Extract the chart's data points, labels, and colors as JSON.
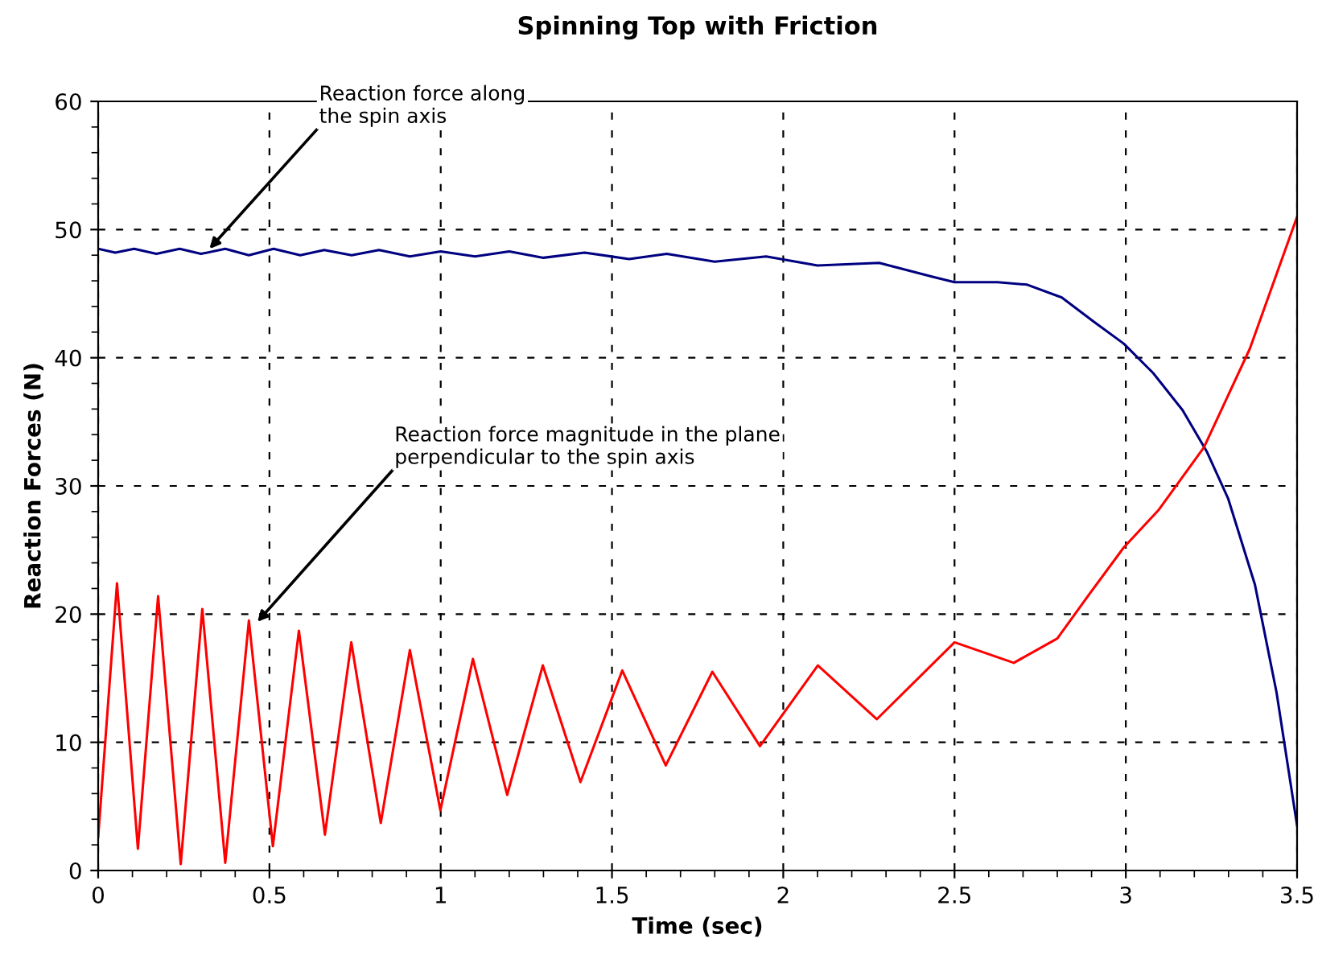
{
  "chart_data": {
    "type": "line",
    "title": "Spinning Top with Friction",
    "xlabel": "Time (sec)",
    "ylabel": "Reaction Forces (N)",
    "series": [
      {
        "color": "#000080",
        "x": [
          0,
          0.05,
          0.105,
          0.17,
          0.238,
          0.3,
          0.371,
          0.44,
          0.512,
          0.59,
          0.66,
          0.74,
          0.82,
          0.91,
          1.0,
          1.1,
          1.2,
          1.3,
          1.42,
          1.55,
          1.66,
          1.8,
          1.95,
          2.1,
          2.28,
          2.438,
          2.5,
          2.626,
          2.712,
          2.813,
          2.907,
          2.994,
          3.08,
          3.166,
          3.236,
          3.299,
          3.377,
          3.44,
          3.5
        ],
        "values": [
          48.5,
          48.2,
          48.5,
          48.1,
          48.5,
          48.1,
          48.5,
          48.0,
          48.5,
          48.0,
          48.4,
          48.0,
          48.4,
          47.9,
          48.3,
          47.9,
          48.3,
          47.8,
          48.2,
          47.7,
          48.1,
          47.5,
          47.9,
          47.2,
          47.4,
          46.3,
          45.9,
          45.9,
          45.7,
          44.7,
          42.8,
          41.1,
          38.8,
          35.9,
          32.7,
          29.0,
          22.3,
          13.9,
          3.5
        ]
      },
      {
        "color": "#ff0000",
        "x": [
          0,
          0.055,
          0.116,
          0.175,
          0.241,
          0.304,
          0.371,
          0.44,
          0.51,
          0.586,
          0.662,
          0.739,
          0.825,
          0.91,
          0.999,
          1.094,
          1.194,
          1.298,
          1.408,
          1.53,
          1.657,
          1.793,
          1.932,
          2.101,
          2.273,
          2.5,
          2.673,
          2.8,
          2.892,
          2.994,
          3.095,
          3.228,
          3.362,
          3.5
        ],
        "values": [
          2.6,
          22.4,
          1.7,
          21.4,
          0.5,
          20.4,
          0.6,
          19.5,
          1.9,
          18.7,
          2.8,
          17.8,
          3.7,
          17.2,
          4.7,
          16.5,
          5.9,
          16.0,
          6.9,
          15.6,
          8.2,
          15.5,
          9.7,
          16.0,
          11.8,
          17.8,
          16.2,
          18.1,
          21.5,
          25.2,
          28.1,
          33.0,
          40.7,
          51.0
        ]
      }
    ],
    "xlim": [
      0,
      3.5
    ],
    "xticks": [
      0,
      0.5,
      1,
      1.5,
      2,
      2.5,
      3,
      3.5
    ],
    "ylim": [
      0,
      60
    ],
    "yticks": [
      0,
      10,
      20,
      30,
      40,
      50,
      60
    ],
    "grid": true,
    "line_style": "solid",
    "marker": "none",
    "annotations": [
      {
        "text": "Reaction force along\nthe spin axis",
        "x": 0.325,
        "y": 48.5
      },
      {
        "text": "Reaction force magnitude in the plane\nperpendicular to the spin axis",
        "x": 0.465,
        "y": 19.4
      }
    ]
  }
}
